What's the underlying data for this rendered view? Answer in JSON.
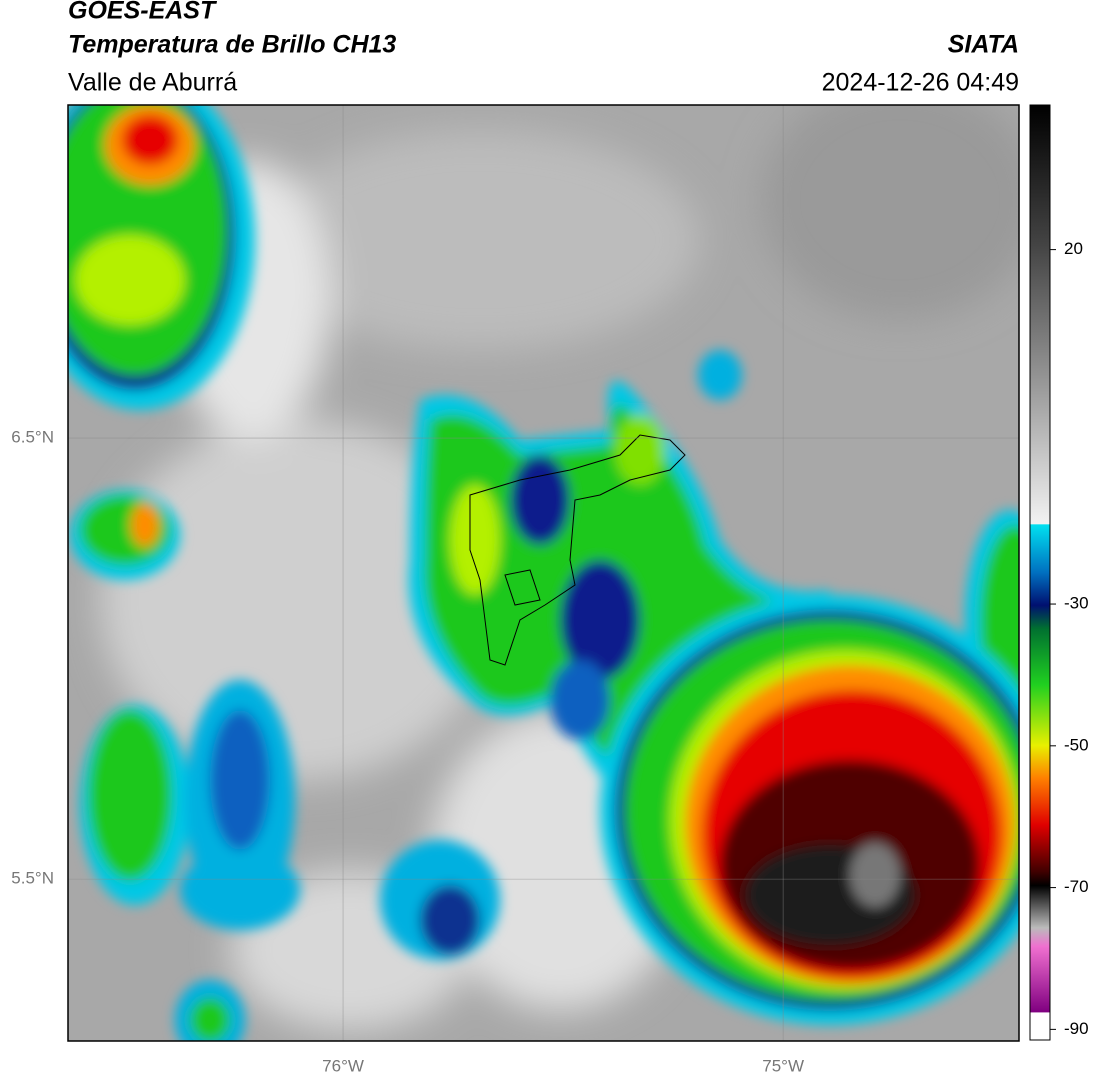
{
  "header": {
    "title": "GOES-EAST",
    "subtitle": "Temperatura de Brillo CH13",
    "region": "Valle de Aburrá",
    "source": "SIATA",
    "datetime": "2024-12-26 04:49"
  },
  "map": {
    "lon_range": [
      -76.625,
      -74.464
    ],
    "lat_range": [
      5.133,
      7.255
    ],
    "lon_ticks": [
      {
        "value": -76,
        "label": "76°W"
      },
      {
        "value": -75,
        "label": "75°W"
      }
    ],
    "lat_ticks": [
      {
        "value": 6.5,
        "label": "6.5°N"
      },
      {
        "value": 5.5,
        "label": "5.5°N"
      }
    ]
  },
  "colorbar": {
    "range": [
      -91.5,
      40.4
    ],
    "ticks": [
      20,
      -30,
      -50,
      -70,
      -90
    ]
  }
}
